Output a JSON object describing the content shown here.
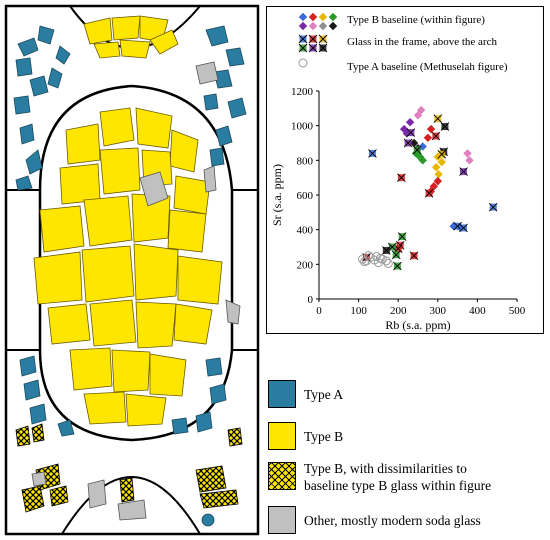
{
  "colors": {
    "type_a": "#2a7da0",
    "type_b": "#ffe600",
    "other": "#c0c0c0",
    "series": [
      "#3a6bd8",
      "#d62020",
      "#e8b800",
      "#2a9a2a",
      "#7a2aa8",
      "#e080c0",
      "#909090",
      "#1a1a1a"
    ]
  },
  "map_legend": [
    {
      "key": "type_a",
      "label": "Type A",
      "fill": "type-a"
    },
    {
      "key": "type_b",
      "label": "Type B",
      "fill": "type-b"
    },
    {
      "key": "type_b_hatched",
      "label": "Type B, with dissimilarities to baseline type B glass within figure",
      "line1": "Type B, with dissimilarities to",
      "line2": "baseline type B glass within figure",
      "fill": "hatched"
    },
    {
      "key": "other",
      "label": "Other, mostly modern soda glass",
      "fill": "other"
    }
  ],
  "chart_data": {
    "type": "scatter",
    "xlabel": "Rb (s.a. ppm)",
    "ylabel": "Sr (s.a. ppm)",
    "xlim": [
      0,
      500
    ],
    "ylim": [
      0,
      1200
    ],
    "x_ticks": [
      "0",
      "100",
      "200",
      "300",
      "400",
      "500"
    ],
    "y_ticks": [
      "0",
      "200",
      "400",
      "600",
      "800",
      "1000",
      "1200"
    ],
    "grid": false,
    "legend_position": "top",
    "legend": [
      {
        "label": "Type B baseline (within figure)",
        "marker": "diamond"
      },
      {
        "label": "Glass in the frame, above the arch",
        "marker": "cross-square"
      },
      {
        "label": "Type A baseline (Methuselah figure)",
        "marker": "circle"
      }
    ],
    "series": [
      {
        "name": "Type B baseline (within figure)",
        "marker": "diamond",
        "points": [
          {
            "x": 258,
            "y": 1090,
            "c": 5
          },
          {
            "x": 250,
            "y": 1060,
            "c": 5
          },
          {
            "x": 230,
            "y": 1020,
            "c": 4
          },
          {
            "x": 215,
            "y": 980,
            "c": 4
          },
          {
            "x": 222,
            "y": 955,
            "c": 4
          },
          {
            "x": 240,
            "y": 900,
            "c": 7
          },
          {
            "x": 250,
            "y": 870,
            "c": 7
          },
          {
            "x": 262,
            "y": 880,
            "c": 0
          },
          {
            "x": 245,
            "y": 840,
            "c": 3
          },
          {
            "x": 255,
            "y": 820,
            "c": 3
          },
          {
            "x": 262,
            "y": 800,
            "c": 3
          },
          {
            "x": 283,
            "y": 980,
            "c": 1
          },
          {
            "x": 275,
            "y": 930,
            "c": 1
          },
          {
            "x": 300,
            "y": 820,
            "c": 2
          },
          {
            "x": 310,
            "y": 790,
            "c": 2
          },
          {
            "x": 296,
            "y": 760,
            "c": 2
          },
          {
            "x": 302,
            "y": 720,
            "c": 2
          },
          {
            "x": 300,
            "y": 680,
            "c": 1
          },
          {
            "x": 290,
            "y": 650,
            "c": 1
          },
          {
            "x": 282,
            "y": 620,
            "c": 1
          },
          {
            "x": 375,
            "y": 840,
            "c": 5
          },
          {
            "x": 380,
            "y": 800,
            "c": 5
          },
          {
            "x": 340,
            "y": 420,
            "c": 0
          },
          {
            "x": 355,
            "y": 415,
            "c": 0
          }
        ]
      },
      {
        "name": "Glass in the frame, above the arch",
        "marker": "cross-square",
        "points": [
          {
            "x": 135,
            "y": 840,
            "c": 0
          },
          {
            "x": 208,
            "y": 700,
            "c": 1
          },
          {
            "x": 300,
            "y": 1040,
            "c": 2
          },
          {
            "x": 318,
            "y": 995,
            "c": 7
          },
          {
            "x": 295,
            "y": 940,
            "c": 1
          },
          {
            "x": 315,
            "y": 850,
            "c": 7
          },
          {
            "x": 310,
            "y": 835,
            "c": 2
          },
          {
            "x": 232,
            "y": 960,
            "c": 4
          },
          {
            "x": 225,
            "y": 900,
            "c": 4
          },
          {
            "x": 248,
            "y": 860,
            "c": 3
          },
          {
            "x": 278,
            "y": 610,
            "c": 1
          },
          {
            "x": 365,
            "y": 735,
            "c": 4
          },
          {
            "x": 440,
            "y": 530,
            "c": 0
          },
          {
            "x": 350,
            "y": 420,
            "c": 0
          },
          {
            "x": 365,
            "y": 410,
            "c": 0
          },
          {
            "x": 240,
            "y": 250,
            "c": 1
          },
          {
            "x": 205,
            "y": 310,
            "c": 1
          },
          {
            "x": 200,
            "y": 290,
            "c": 1
          },
          {
            "x": 185,
            "y": 300,
            "c": 3
          },
          {
            "x": 170,
            "y": 280,
            "c": 7
          },
          {
            "x": 198,
            "y": 190,
            "c": 3
          },
          {
            "x": 120,
            "y": 240,
            "c": 1
          },
          {
            "x": 195,
            "y": 255,
            "c": 3
          },
          {
            "x": 210,
            "y": 360,
            "c": 3
          }
        ]
      },
      {
        "name": "Type A baseline (Methuselah figure)",
        "marker": "circle",
        "points": [
          {
            "x": 110,
            "y": 230
          },
          {
            "x": 120,
            "y": 220
          },
          {
            "x": 130,
            "y": 240
          },
          {
            "x": 140,
            "y": 225
          },
          {
            "x": 150,
            "y": 210
          },
          {
            "x": 160,
            "y": 230
          },
          {
            "x": 170,
            "y": 220
          },
          {
            "x": 125,
            "y": 250
          },
          {
            "x": 145,
            "y": 245
          },
          {
            "x": 175,
            "y": 205
          },
          {
            "x": 115,
            "y": 215
          },
          {
            "x": 155,
            "y": 235
          }
        ]
      }
    ]
  }
}
